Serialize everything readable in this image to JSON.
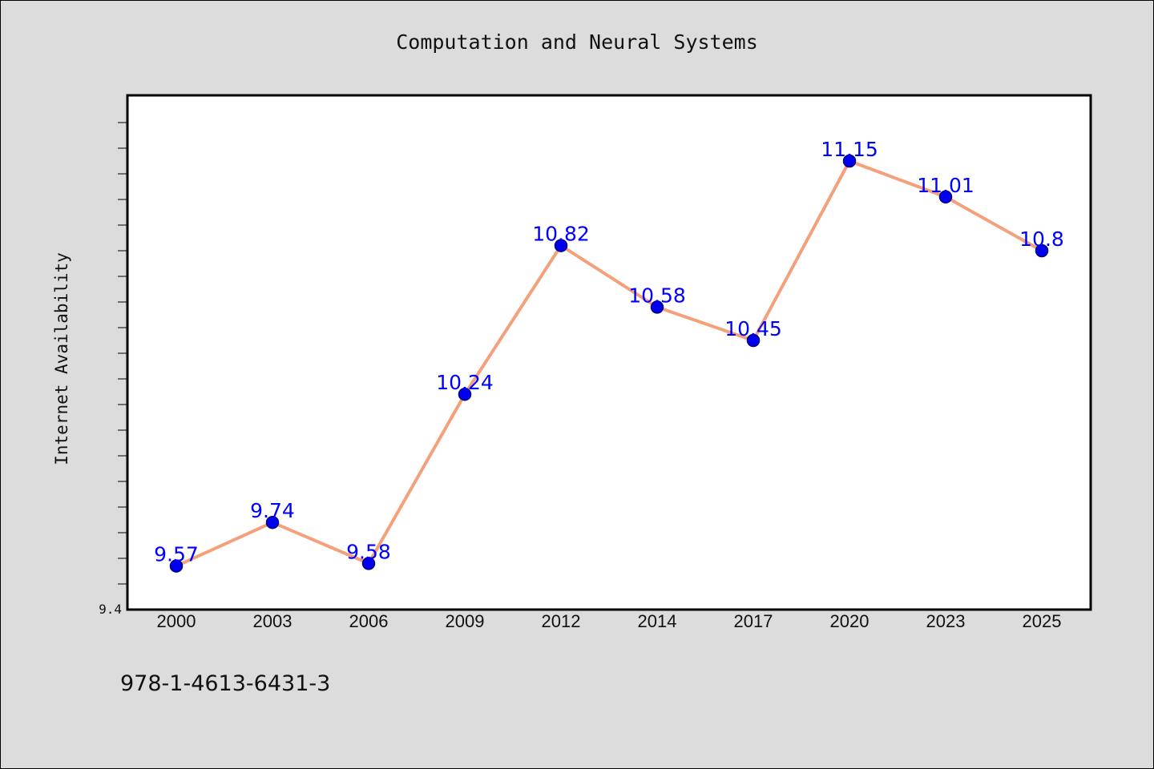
{
  "chart_data": {
    "type": "line",
    "title": "Computation and Neural Systems",
    "xlabel": "",
    "ylabel": "Internet Availability",
    "categories": [
      "2000",
      "2003",
      "2006",
      "2009",
      "2012",
      "2014",
      "2017",
      "2020",
      "2023",
      "2025"
    ],
    "series": [
      {
        "values": [
          9.57,
          9.74,
          9.58,
          10.24,
          10.82,
          10.58,
          10.45,
          11.15,
          11.01,
          10.8
        ],
        "labels": [
          "9.57",
          "9.74",
          "9.58",
          "10.24",
          "10.82",
          "10.58",
          "10.45",
          "11.15",
          "11.01",
          "10.8"
        ]
      }
    ],
    "y_tick_labels": [
      "9.4"
    ],
    "ylim": [
      9.4,
      11.4
    ],
    "grid": false,
    "legend": "none",
    "colors": {
      "line": "#f4a07a",
      "marker": "#0000ee",
      "marker_edge": "#000080",
      "data_label": "#0000ff",
      "plot_bg": "#ffffff",
      "figure_bg": "#dcdcdc"
    }
  },
  "footer": {
    "isbn": "978-1-4613-6431-3"
  }
}
